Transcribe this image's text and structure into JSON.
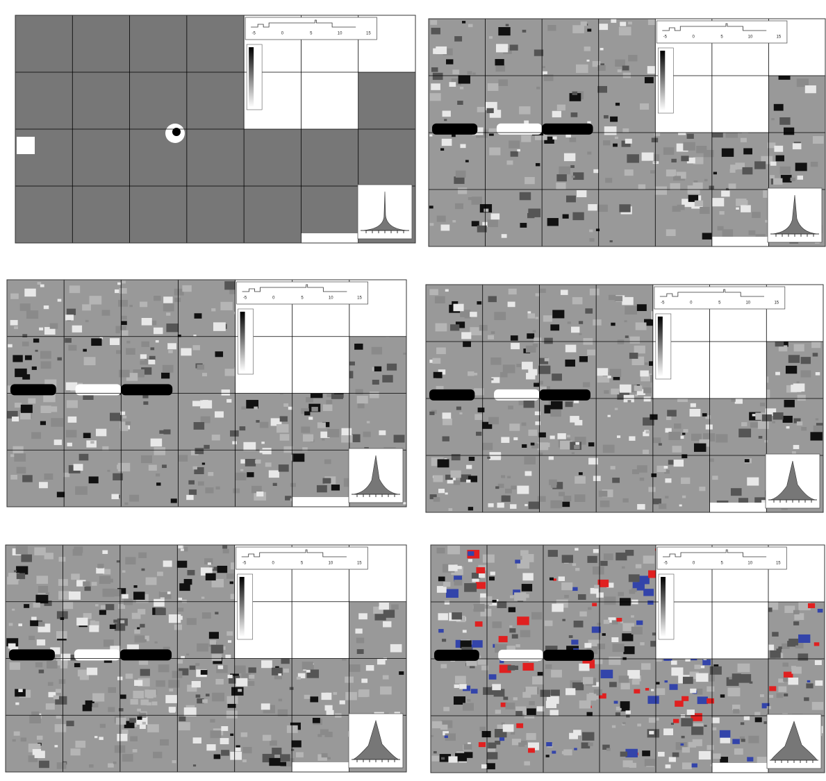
{
  "panels": [
    {
      "scale_labels": [
        "-5",
        "0",
        "5",
        "10",
        "15"
      ]
    },
    {
      "scale_labels": [
        "-5",
        "0",
        "5",
        "10",
        "15"
      ]
    },
    {
      "scale_labels": [
        "-5",
        "0",
        "5",
        "10",
        "15"
      ]
    },
    {
      "scale_labels": [
        "-5",
        "0",
        "5",
        "10",
        "15"
      ]
    },
    {
      "scale_labels": [
        "-5",
        "0",
        "5",
        "10",
        "15"
      ]
    },
    {
      "scale_labels": [
        "-5",
        "0",
        "5",
        "10",
        "15"
      ]
    }
  ]
}
